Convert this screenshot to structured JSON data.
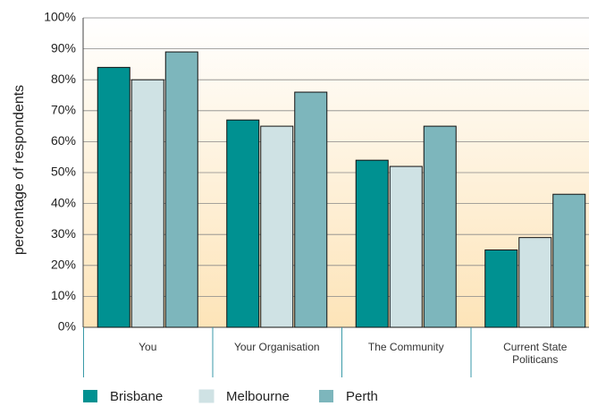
{
  "chart_data": {
    "type": "bar",
    "y_label": "percentage of respondents",
    "categories": [
      "You",
      "Your Organisation",
      "The Community",
      "Current State Politicans"
    ],
    "series": [
      {
        "name": "Brisbane",
        "color": "#009191",
        "values": [
          84,
          67,
          54,
          25
        ]
      },
      {
        "name": "Melbourne",
        "color": "#cfe2e4",
        "values": [
          80,
          65,
          52,
          29
        ]
      },
      {
        "name": "Perth",
        "color": "#7db6bc",
        "values": [
          89,
          76,
          65,
          43
        ]
      }
    ],
    "ylim": [
      0,
      100
    ],
    "yticks": [
      {
        "value": 0,
        "label": "0%"
      },
      {
        "value": 10,
        "label": "10%"
      },
      {
        "value": 20,
        "label": "20%"
      },
      {
        "value": 30,
        "label": "30%"
      },
      {
        "value": 40,
        "label": "40%"
      },
      {
        "value": 50,
        "label": "50%"
      },
      {
        "value": 60,
        "label": "60%"
      },
      {
        "value": 70,
        "label": "70%"
      },
      {
        "value": 80,
        "label": "80%"
      },
      {
        "value": 90,
        "label": "90%"
      },
      {
        "value": 100,
        "label": "100%"
      }
    ],
    "grid": true
  }
}
